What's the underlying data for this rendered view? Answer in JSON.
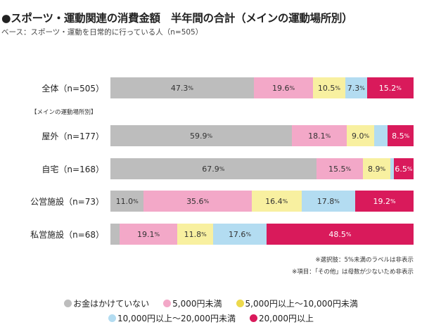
{
  "chart_data": {
    "type": "bar",
    "orientation": "horizontal-stacked-100",
    "title": "●スポーツ・運動関連の消費金額　半年間の合計（メインの運動場所別）",
    "subtitle": "ベース：スポーツ・運動を日常的に行っている人（n=505）",
    "group_label": "【メインの運動場所別】",
    "categories": [
      "全体（n=505）",
      "屋外（n=177）",
      "自宅（n=168）",
      "公営施設（n=73）",
      "私営施設（n=68）"
    ],
    "series": [
      {
        "name": "お金はかけていない",
        "color": "#bdbdbd",
        "legend_color": "#bdbdbd",
        "values": [
          47.3,
          59.9,
          67.9,
          11.0,
          3.0
        ]
      },
      {
        "name": "5,000円未満",
        "color": "#f3a8c8",
        "legend_color": "#f3a8c8",
        "values": [
          19.6,
          18.1,
          15.5,
          35.6,
          19.1
        ]
      },
      {
        "name": "5,000円以上～10,000円未満",
        "color": "#f8f0a0",
        "legend_color": "#ecd94c",
        "values": [
          10.5,
          9.0,
          8.9,
          16.4,
          11.8
        ]
      },
      {
        "name": "10,000円以上～20,000円未満",
        "color": "#b3dcf1",
        "legend_color": "#b3dcf1",
        "values": [
          7.3,
          4.5,
          1.2,
          17.8,
          17.6
        ]
      },
      {
        "name": "20,000円以上",
        "color": "#d91a5b",
        "legend_color": "#d91a5b",
        "values": [
          15.2,
          8.5,
          6.5,
          19.2,
          48.5
        ]
      }
    ],
    "label_threshold": 5,
    "unit": "%",
    "legend_position": "bottom",
    "notes": [
      "※選択肢：5%未満のラベルは非表示",
      "※項目：「その他」は母数が少ないため非表示"
    ]
  }
}
